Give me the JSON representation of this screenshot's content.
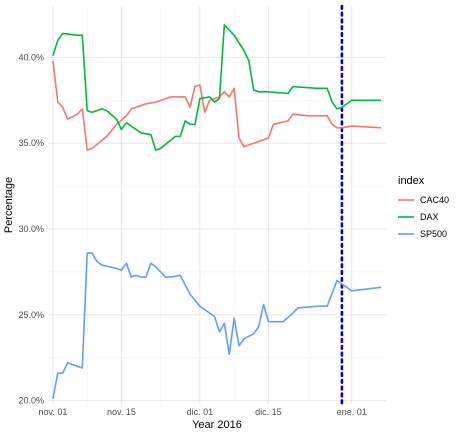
{
  "chart_data": {
    "type": "line",
    "xlabel": "Year 2016",
    "ylabel": "Percentage",
    "x_range": [
      "2015-10-31",
      "2016-01-08"
    ],
    "y_range": [
      19.8,
      43.0
    ],
    "y_ticks": [
      {
        "value": 20,
        "label": "20.0%"
      },
      {
        "value": 25,
        "label": "25.0%"
      },
      {
        "value": 30,
        "label": "30.0%"
      },
      {
        "value": 35,
        "label": "35.0%"
      },
      {
        "value": 40,
        "label": "40.0%"
      }
    ],
    "x_ticks": [
      {
        "value": "2015-11-01",
        "label": "nov. 01"
      },
      {
        "value": "2015-11-15",
        "label": "nov. 15"
      },
      {
        "value": "2015-12-01",
        "label": "dic. 01"
      },
      {
        "value": "2015-12-15",
        "label": "dic. 15"
      },
      {
        "value": "2016-01-01",
        "label": "ene. 01"
      }
    ],
    "grid": true,
    "legend": {
      "title": "index",
      "position": "right"
    },
    "vline": {
      "x": "2015-12-30",
      "color": "#0000cd",
      "style": "dotted"
    },
    "series": [
      {
        "name": "CAC40",
        "color": "#f8766d",
        "points": [
          [
            "2015-11-01",
            39.8
          ],
          [
            "2015-11-02",
            37.4
          ],
          [
            "2015-11-03",
            37.1
          ],
          [
            "2015-11-04",
            36.4
          ],
          [
            "2015-11-06",
            36.7
          ],
          [
            "2015-11-07",
            37.0
          ],
          [
            "2015-11-08",
            34.6
          ],
          [
            "2015-11-09",
            34.7
          ],
          [
            "2015-11-12",
            35.4
          ],
          [
            "2015-11-14",
            36.1
          ],
          [
            "2015-11-16",
            36.6
          ],
          [
            "2015-11-17",
            37.0
          ],
          [
            "2015-11-20",
            37.3
          ],
          [
            "2015-11-22",
            37.4
          ],
          [
            "2015-11-25",
            37.7
          ],
          [
            "2015-11-28",
            37.7
          ],
          [
            "2015-11-29",
            37.1
          ],
          [
            "2015-11-30",
            38.3
          ],
          [
            "2015-12-01",
            38.4
          ],
          [
            "2015-12-02",
            36.8
          ],
          [
            "2015-12-03",
            37.5
          ],
          [
            "2015-12-05",
            37.7
          ],
          [
            "2015-12-06",
            38.0
          ],
          [
            "2015-12-07",
            37.7
          ],
          [
            "2015-12-08",
            38.2
          ],
          [
            "2015-12-09",
            35.3
          ],
          [
            "2015-12-10",
            34.8
          ],
          [
            "2015-12-13",
            35.1
          ],
          [
            "2015-12-15",
            35.3
          ],
          [
            "2015-12-16",
            36.1
          ],
          [
            "2015-12-19",
            36.3
          ],
          [
            "2015-12-20",
            36.7
          ],
          [
            "2015-12-23",
            36.6
          ],
          [
            "2015-12-25",
            36.6
          ],
          [
            "2015-12-27",
            36.6
          ],
          [
            "2015-12-28",
            36.1
          ],
          [
            "2015-12-29",
            35.9
          ],
          [
            "2015-12-30",
            35.9
          ],
          [
            "2016-01-01",
            36.0
          ],
          [
            "2016-01-07",
            35.9
          ]
        ]
      },
      {
        "name": "DAX",
        "color": "#00ba38",
        "points": [
          [
            "2015-11-01",
            40.1
          ],
          [
            "2015-11-02",
            41.0
          ],
          [
            "2015-11-03",
            41.4
          ],
          [
            "2015-11-06",
            41.3
          ],
          [
            "2015-11-07",
            41.3
          ],
          [
            "2015-11-08",
            36.9
          ],
          [
            "2015-11-09",
            36.8
          ],
          [
            "2015-11-11",
            37.0
          ],
          [
            "2015-11-12",
            36.9
          ],
          [
            "2015-11-14",
            36.4
          ],
          [
            "2015-11-15",
            35.8
          ],
          [
            "2015-11-16",
            36.2
          ],
          [
            "2015-11-19",
            35.6
          ],
          [
            "2015-11-21",
            35.5
          ],
          [
            "2015-11-22",
            34.6
          ],
          [
            "2015-11-23",
            34.7
          ],
          [
            "2015-11-26",
            35.4
          ],
          [
            "2015-11-27",
            35.4
          ],
          [
            "2015-11-28",
            36.3
          ],
          [
            "2015-11-29",
            36.1
          ],
          [
            "2015-11-30",
            36.1
          ],
          [
            "2015-12-01",
            37.6
          ],
          [
            "2015-12-03",
            37.7
          ],
          [
            "2015-12-04",
            37.4
          ],
          [
            "2015-12-05",
            37.6
          ],
          [
            "2015-12-06",
            41.9
          ],
          [
            "2015-12-08",
            41.3
          ],
          [
            "2015-12-10",
            40.4
          ],
          [
            "2015-12-11",
            39.8
          ],
          [
            "2015-12-12",
            38.1
          ],
          [
            "2015-12-13",
            38.0
          ],
          [
            "2015-12-15",
            38.0
          ],
          [
            "2015-12-19",
            37.9
          ],
          [
            "2015-12-20",
            38.3
          ],
          [
            "2015-12-25",
            38.2
          ],
          [
            "2015-12-27",
            38.2
          ],
          [
            "2015-12-28",
            37.4
          ],
          [
            "2015-12-29",
            37.0
          ],
          [
            "2015-12-30",
            37.1
          ],
          [
            "2016-01-01",
            37.5
          ],
          [
            "2016-01-07",
            37.5
          ]
        ]
      },
      {
        "name": "SP500",
        "color": "#619cff",
        "points": [
          [
            "2015-11-01",
            20.1
          ],
          [
            "2015-11-02",
            21.6
          ],
          [
            "2015-11-03",
            21.6
          ],
          [
            "2015-11-04",
            22.2
          ],
          [
            "2015-11-07",
            21.9
          ],
          [
            "2015-11-08",
            28.6
          ],
          [
            "2015-11-09",
            28.6
          ],
          [
            "2015-11-10",
            28.1
          ],
          [
            "2015-11-11",
            27.9
          ],
          [
            "2015-11-14",
            27.7
          ],
          [
            "2015-11-15",
            27.6
          ],
          [
            "2015-11-16",
            28.0
          ],
          [
            "2015-11-17",
            27.2
          ],
          [
            "2015-11-18",
            27.3
          ],
          [
            "2015-11-19",
            27.2
          ],
          [
            "2015-11-20",
            27.2
          ],
          [
            "2015-11-21",
            28.0
          ],
          [
            "2015-11-22",
            27.8
          ],
          [
            "2015-11-24",
            27.2
          ],
          [
            "2015-11-25",
            27.2
          ],
          [
            "2015-11-27",
            27.3
          ],
          [
            "2015-11-29",
            26.2
          ],
          [
            "2015-12-01",
            25.5
          ],
          [
            "2015-12-04",
            24.9
          ],
          [
            "2015-12-05",
            24.0
          ],
          [
            "2015-12-06",
            24.5
          ],
          [
            "2015-12-07",
            22.7
          ],
          [
            "2015-12-08",
            24.8
          ],
          [
            "2015-12-09",
            23.2
          ],
          [
            "2015-12-10",
            23.6
          ],
          [
            "2015-12-12",
            23.9
          ],
          [
            "2015-12-13",
            24.3
          ],
          [
            "2015-12-14",
            25.6
          ],
          [
            "2015-12-15",
            24.6
          ],
          [
            "2015-12-18",
            24.6
          ],
          [
            "2015-12-20",
            25.1
          ],
          [
            "2015-12-21",
            25.4
          ],
          [
            "2015-12-25",
            25.5
          ],
          [
            "2015-12-27",
            25.5
          ],
          [
            "2015-12-29",
            27.0
          ],
          [
            "2015-12-30",
            26.8
          ],
          [
            "2016-01-01",
            26.4
          ],
          [
            "2016-01-07",
            26.6
          ]
        ]
      }
    ]
  }
}
